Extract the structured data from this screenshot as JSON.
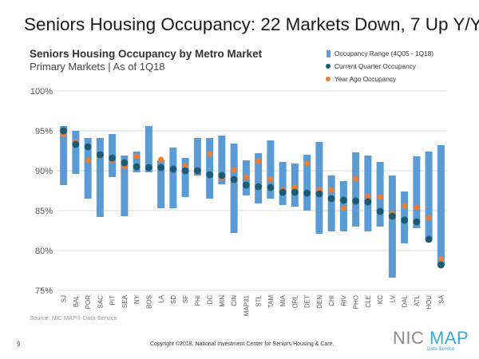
{
  "slide": {
    "title": "Seniors Housing Occupancy: 22 Markets Down, 7 Up Y/Y",
    "page_number": "9",
    "copyright": "Copyright ©2018. National Investment Center for Seniors Housing & Care.",
    "source": "Source: NIC MAP® Data Service",
    "logo": {
      "part1": "NIC",
      "part2": "MAP",
      "subtitle": "Data Service",
      "grey": "#8a8a8a",
      "blue": "#3aa9d6"
    }
  },
  "chart_data": {
    "type": "range-dot",
    "title": "Seniors Housing Occupancy by Metro Market",
    "subtitle": "Primary Markets | As of 1Q18",
    "ylim": [
      75,
      100
    ],
    "yticks": [
      "75%",
      "80%",
      "85%",
      "90%",
      "95%",
      "100%"
    ],
    "grid": true,
    "legend_position": "top-right",
    "legend": {
      "range": "Occupancy Range (4Q05 - 1Q18)",
      "current": "Current Quarter Occupancy",
      "year_ago": "Year Ago Occupancy"
    },
    "colors": {
      "range": "#5b9bd5",
      "current": "#1d5a73",
      "year_ago": "#ed7d31",
      "grid": "#d9d9d9"
    },
    "categories": [
      "SJ",
      "BAL",
      "POR",
      "SAC",
      "PIT",
      "SEA",
      "NY",
      "BOS",
      "LA",
      "SD",
      "SF",
      "PHI",
      "DC",
      "MIN",
      "CIN",
      "MAP31",
      "STL",
      "TAM",
      "MIA",
      "ORL",
      "DET",
      "DEN",
      "CHI",
      "RIV",
      "PHO",
      "CLE",
      "KC",
      "LV",
      "DAL",
      "ATL",
      "HOU",
      "SA"
    ],
    "range_low": [
      88.2,
      89.6,
      86.5,
      84.2,
      89.2,
      84.3,
      89.8,
      89.8,
      85.3,
      85.3,
      86.7,
      89.4,
      86.5,
      88.3,
      82.2,
      86.9,
      85.9,
      86.5,
      85.7,
      85.5,
      85.0,
      82.1,
      82.4,
      82.4,
      83.0,
      82.4,
      83.0,
      76.6,
      80.9,
      82.8,
      81.3,
      78.1
    ],
    "range_high": [
      95.6,
      95.0,
      94.1,
      94.1,
      94.6,
      91.9,
      92.4,
      95.6,
      91.3,
      92.9,
      91.6,
      94.1,
      94.1,
      94.4,
      93.4,
      91.3,
      92.2,
      93.8,
      91.1,
      90.9,
      92.0,
      93.6,
      89.4,
      88.7,
      92.3,
      91.9,
      91.1,
      89.4,
      87.4,
      91.8,
      92.4,
      93.2
    ],
    "current": [
      95.0,
      93.3,
      93.0,
      92.0,
      91.6,
      91.0,
      90.5,
      90.4,
      90.4,
      90.2,
      90.0,
      90.0,
      89.5,
      89.4,
      88.9,
      88.2,
      88.0,
      87.9,
      87.3,
      87.3,
      87.2,
      87.1,
      86.5,
      86.3,
      86.2,
      86.1,
      84.9,
      84.3,
      83.8,
      83.6,
      81.4,
      78.2
    ],
    "year_ago": [
      94.6,
      93.6,
      91.3,
      91.9,
      91.3,
      90.5,
      91.8,
      90.4,
      91.4,
      90.1,
      90.6,
      89.9,
      92.1,
      89.1,
      90.1,
      89.2,
      91.2,
      88.9,
      87.6,
      87.9,
      90.9,
      87.6,
      87.6,
      85.3,
      89.0,
      86.8,
      86.7,
      84.6,
      85.6,
      85.4,
      84.1,
      78.9
    ]
  }
}
